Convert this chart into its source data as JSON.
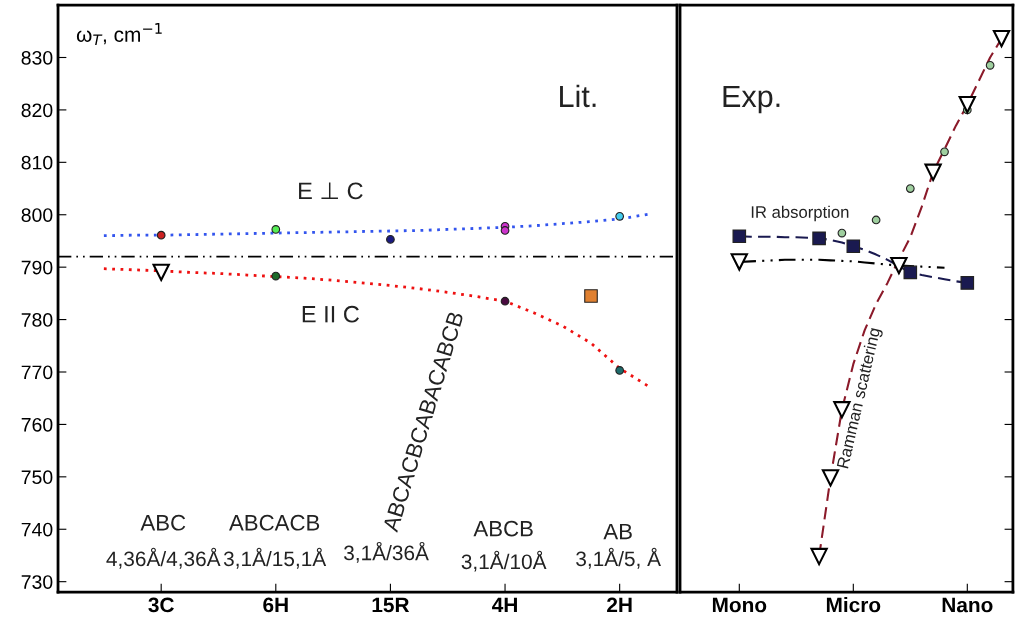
{
  "chart_data": [
    {
      "type": "scatter",
      "ylabel": "ω$_{T}$, cm$^{−1}$",
      "ylim": [
        728,
        840
      ],
      "categories": [
        null,
        null,
        "3C",
        null,
        null,
        null,
        "6H",
        null,
        null,
        null,
        "15R",
        null,
        null,
        null,
        "4H",
        null,
        null,
        null,
        "2H",
        null
      ],
      "yticks": [
        730,
        740,
        750,
        760,
        770,
        780,
        790,
        800,
        810,
        820,
        830
      ],
      "series": [
        {
          "type": "line",
          "color": "#3355ee",
          "line_style": "dotted",
          "marker": "none",
          "values": [
            796.0,
            796.1,
            796.1,
            796.2,
            796.3,
            796.4,
            796.5,
            796.6,
            796.7,
            796.8,
            796.9,
            797.0,
            797.2,
            797.4,
            797.6,
            797.9,
            798.3,
            798.7,
            799.2,
            800.1
          ]
        },
        {
          "type": "line",
          "color": "#ee1111",
          "line_style": "dotted",
          "marker": "none",
          "values": [
            789.7,
            789.5,
            789.3,
            789.0,
            788.8,
            788.5,
            788.2,
            787.9,
            787.5,
            787.0,
            786.5,
            785.9,
            785.2,
            784.4,
            783.5,
            781.3,
            778.8,
            775.5,
            770.7,
            767.3
          ]
        },
        {
          "marker": "circle",
          "colors": [
            null,
            null,
            "#cc2222",
            null,
            null,
            null,
            "#55ee55",
            null,
            null,
            null,
            "#1a1a80",
            null,
            null,
            null,
            "#cc33cc",
            null,
            null,
            null,
            "#44ccee",
            null
          ],
          "values": [
            null,
            null,
            796.1,
            null,
            null,
            null,
            797.2,
            null,
            null,
            null,
            795.3,
            null,
            null,
            null,
            797.8,
            null,
            null,
            null,
            799.7,
            null
          ]
        },
        {
          "marker": "circle",
          "color": "#cc33cc",
          "values": [
            null,
            null,
            null,
            null,
            null,
            null,
            null,
            null,
            null,
            null,
            null,
            null,
            null,
            null,
            797.0,
            null,
            null,
            null,
            null,
            null
          ]
        },
        {
          "marker": "circle",
          "colors": [
            null,
            null,
            null,
            null,
            null,
            null,
            "#1d6b2a",
            null,
            null,
            null,
            null,
            null,
            null,
            null,
            "#4a0a40",
            null,
            null,
            null,
            "#1d6b6b",
            null
          ],
          "values": [
            null,
            null,
            null,
            null,
            null,
            null,
            788.3,
            null,
            null,
            null,
            null,
            null,
            null,
            null,
            783.5,
            null,
            null,
            null,
            770.3,
            null
          ]
        },
        {
          "marker": "triangle",
          "color": "#000000",
          "values": [
            null,
            null,
            789.0,
            null,
            null,
            null,
            null,
            null,
            null,
            null,
            null,
            null,
            null,
            null,
            null,
            null,
            null,
            null,
            null,
            null
          ]
        },
        {
          "marker": "square",
          "color": "#e08030",
          "values": [
            null,
            null,
            null,
            null,
            null,
            null,
            null,
            null,
            null,
            null,
            null,
            null,
            null,
            null,
            null,
            null,
            null,
            784.5,
            null,
            null
          ]
        }
      ],
      "ref_lines": [
        {
          "axis": "y",
          "value": 792,
          "color": "#000000",
          "line_style": "dashdot"
        }
      ],
      "annotations": [
        "Lit.",
        "E ⊥ C",
        "E II C",
        "ABCACBCABACABCB",
        "ABC",
        "4,36Å/4,36Å",
        "ABCACB",
        "3,1Å/15,1Å",
        "3,1Å/36Å",
        "ABCB",
        "3,1Å/10Å",
        "AB",
        "3,1Å/5, Å"
      ]
    },
    {
      "type": "scatter",
      "ylim": [
        728,
        840
      ],
      "categories": [
        null,
        null,
        null,
        null,
        null,
        "Mono",
        null,
        null,
        null,
        null,
        null,
        null,
        null,
        null,
        null,
        "Micro",
        null,
        null,
        null,
        null,
        null,
        null,
        null,
        null,
        null,
        "Nano",
        null,
        null,
        null
      ],
      "yticks": [
        730,
        740,
        750,
        760,
        770,
        780,
        790,
        800,
        810,
        820,
        830
      ],
      "tick_labels": "x",
      "series": [
        {
          "marker": "circle",
          "color": "#9fcf9f",
          "values": [
            null,
            null,
            null,
            null,
            null,
            null,
            null,
            null,
            null,
            null,
            null,
            null,
            null,
            null,
            796.5,
            null,
            null,
            799.0,
            null,
            null,
            805.0,
            null,
            null,
            812.0,
            null,
            820.0,
            null,
            828.5,
            null
          ]
        },
        {
          "type": "line",
          "color": "#1a1a50",
          "line_style": "dashed",
          "marker": "none",
          "values": [
            null,
            null,
            null,
            null,
            null,
            795.9,
            795.8,
            795.8,
            795.8,
            795.7,
            795.7,
            795.6,
            795.5,
            795.2,
            794.7,
            794.0,
            793.3,
            792.4,
            791.4,
            790.2,
            789.0,
            788.5,
            788.1,
            787.7,
            787.3,
            787.0,
            null,
            null,
            null
          ]
        },
        {
          "marker": "square",
          "color": "#1a1a50",
          "values": [
            null,
            null,
            null,
            null,
            null,
            795.9,
            null,
            null,
            null,
            null,
            null,
            null,
            795.5,
            null,
            null,
            794.0,
            null,
            null,
            null,
            null,
            789.0,
            null,
            null,
            null,
            null,
            787.0,
            null,
            null,
            null
          ]
        },
        {
          "type": "line",
          "color": "#000000",
          "line_style": "dashdot",
          "marker": "none",
          "values": [
            null,
            null,
            null,
            null,
            null,
            791.0,
            791.1,
            791.2,
            791.3,
            791.4,
            791.4,
            791.4,
            791.4,
            791.3,
            791.2,
            791.1,
            790.9,
            790.7,
            790.5,
            790.3,
            790.2,
            790.1,
            790.0,
            789.9,
            null,
            null,
            null,
            null,
            null
          ]
        },
        {
          "marker": "triangle",
          "color": "#000000",
          "values": [
            null,
            null,
            null,
            null,
            null,
            791.0,
            null,
            null,
            null,
            null,
            null,
            null,
            null,
            null,
            null,
            null,
            null,
            null,
            null,
            790.3,
            null,
            null,
            null,
            null,
            null,
            null,
            null,
            null,
            null
          ]
        },
        {
          "type": "line",
          "color": "#8b1a2a",
          "line_style": "dashed",
          "marker": "none",
          "values": [
            null,
            null,
            null,
            null,
            null,
            null,
            null,
            null,
            null,
            null,
            null,
            null,
            734.8,
            749.8,
            762.8,
            771.5,
            778.0,
            783.0,
            787.0,
            791.5,
            795.7,
            801.5,
            808.1,
            812.5,
            817.0,
            821.0,
            825.5,
            830.0,
            833.6
          ]
        },
        {
          "marker": "triangle",
          "color": "#000000",
          "values": [
            null,
            null,
            null,
            null,
            null,
            null,
            null,
            null,
            null,
            null,
            null,
            null,
            734.8,
            749.8,
            762.8,
            null,
            null,
            null,
            null,
            null,
            null,
            null,
            808.1,
            null,
            null,
            821.0,
            null,
            null,
            833.6
          ]
        }
      ],
      "annotations": [
        "Exp.",
        "IR absorption",
        "Ramman scattering"
      ]
    }
  ]
}
